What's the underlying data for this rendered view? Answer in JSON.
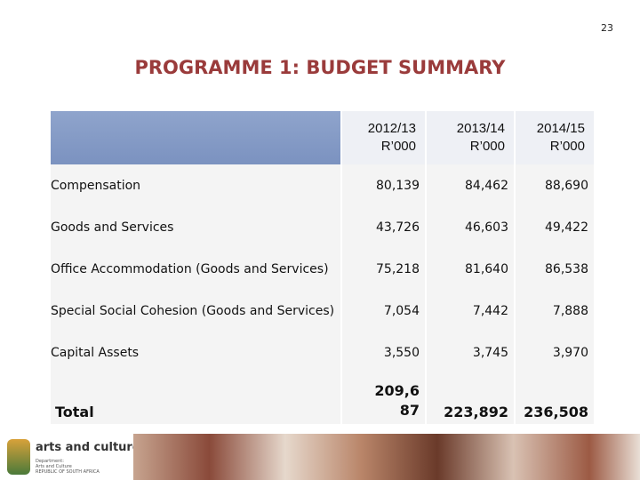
{
  "page_number": "23",
  "title": "PROGRAMME 1: BUDGET SUMMARY",
  "table": {
    "header": [
      {
        "year": "2012/13",
        "unit": "R’000"
      },
      {
        "year": "2013/14",
        "unit": "R’000"
      },
      {
        "year": "2014/15",
        "unit": "R’000"
      }
    ],
    "rows": [
      [
        "Compensation",
        "80,139",
        "84,462",
        "88,690"
      ],
      [
        "Goods and Services",
        "43,726",
        "46,603",
        "49,422"
      ],
      [
        "Office Accommodation (Goods and Services)",
        "75,218",
        "81,640",
        "86,538"
      ],
      [
        "Special Social Cohesion (Goods and Services)",
        "7,054",
        "7,442",
        "7,888"
      ],
      [
        "Capital Assets",
        "3,550",
        "3,745",
        "3,970"
      ],
      [
        "Total",
        "209,687",
        "223,892",
        "236,508"
      ]
    ]
  },
  "footer": {
    "logo": "arts and culture",
    "department": "Department:",
    "department_name": "Arts and Culture",
    "country": "REPUBLIC OF SOUTH AFRICA"
  }
}
